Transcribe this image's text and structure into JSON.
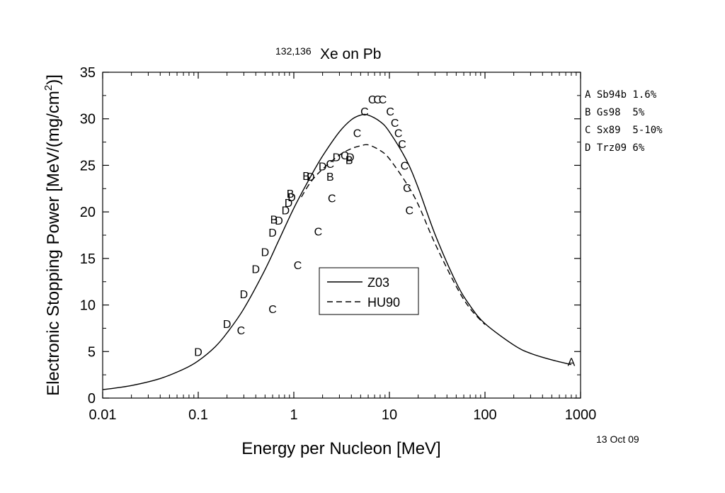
{
  "chart_data": {
    "type": "line",
    "title_superscript": "132,136",
    "title_main": "Xe on Pb",
    "xlabel": "Energy per Nucleon [MeV]",
    "ylabel_pre": "Electronic Stopping Power [MeV/(mg/cm",
    "ylabel_sup": "2",
    "ylabel_post": ")]",
    "x_scale": "log",
    "xlim": [
      0.01,
      1000
    ],
    "ylim": [
      0,
      35
    ],
    "x_ticks": [
      0.01,
      0.1,
      1,
      10,
      100,
      1000
    ],
    "x_tick_labels": [
      "0.01",
      "0.1",
      "1",
      "10",
      "100",
      "1000"
    ],
    "y_ticks": [
      0,
      5,
      10,
      15,
      20,
      25,
      30,
      35
    ],
    "y_tick_labels": [
      "0",
      "5",
      "10",
      "15",
      "20",
      "25",
      "30",
      "35"
    ],
    "grid": false,
    "legend_position": "center",
    "date": "13 Oct 09",
    "series": [
      {
        "name": "Z03",
        "style": "solid",
        "x": [
          0.01,
          0.02,
          0.04,
          0.07,
          0.1,
          0.15,
          0.2,
          0.3,
          0.5,
          0.7,
          1,
          1.5,
          2,
          3,
          4,
          5,
          6,
          8,
          10,
          15,
          20,
          30,
          50,
          70,
          100,
          200,
          300,
          500,
          800
        ],
        "y": [
          0.9,
          1.35,
          2.1,
          3.1,
          4.0,
          5.5,
          7.0,
          9.6,
          13.8,
          17.0,
          20.4,
          23.8,
          26.0,
          28.6,
          29.9,
          30.4,
          30.4,
          29.7,
          28.6,
          25.6,
          22.6,
          17.6,
          12.4,
          9.9,
          8.0,
          5.7,
          4.8,
          4.1,
          3.6
        ]
      },
      {
        "name": "HU90",
        "style": "dashed",
        "x": [
          1.2,
          1.5,
          2,
          3,
          4,
          5,
          6,
          8,
          10,
          15,
          20,
          30,
          50,
          70,
          100
        ],
        "y": [
          21.6,
          23.2,
          24.6,
          26.1,
          26.8,
          27.1,
          27.2,
          26.6,
          25.7,
          23.1,
          20.8,
          16.6,
          12.0,
          9.6,
          7.9
        ]
      }
    ],
    "data_points": [
      {
        "label": "A",
        "x": 800,
        "y": 3.9
      },
      {
        "label": "B",
        "x": 0.62,
        "y": 19.2
      },
      {
        "label": "B",
        "x": 0.92,
        "y": 22.0
      },
      {
        "label": "B",
        "x": 1.35,
        "y": 23.9
      },
      {
        "label": "B",
        "x": 2.4,
        "y": 23.8
      },
      {
        "label": "B",
        "x": 3.8,
        "y": 25.6
      },
      {
        "label": "C",
        "x": 0.28,
        "y": 7.3
      },
      {
        "label": "C",
        "x": 0.6,
        "y": 9.6
      },
      {
        "label": "C",
        "x": 1.1,
        "y": 14.3
      },
      {
        "label": "C",
        "x": 1.8,
        "y": 17.9
      },
      {
        "label": "C",
        "x": 2.5,
        "y": 21.5
      },
      {
        "label": "C",
        "x": 2.4,
        "y": 25.2
      },
      {
        "label": "C",
        "x": 3.4,
        "y": 26.1
      },
      {
        "label": "C",
        "x": 4.6,
        "y": 28.5
      },
      {
        "label": "C",
        "x": 5.5,
        "y": 30.8
      },
      {
        "label": "C",
        "x": 6.6,
        "y": 32.1
      },
      {
        "label": "C",
        "x": 7.5,
        "y": 32.1
      },
      {
        "label": "C",
        "x": 8.5,
        "y": 32.1
      },
      {
        "label": "C",
        "x": 10.2,
        "y": 30.8
      },
      {
        "label": "C",
        "x": 11.4,
        "y": 29.6
      },
      {
        "label": "C",
        "x": 12.4,
        "y": 28.5
      },
      {
        "label": "C",
        "x": 13.6,
        "y": 27.3
      },
      {
        "label": "C",
        "x": 14.4,
        "y": 25.0
      },
      {
        "label": "C",
        "x": 15.3,
        "y": 22.6
      },
      {
        "label": "C",
        "x": 16.2,
        "y": 20.2
      },
      {
        "label": "D",
        "x": 0.1,
        "y": 5.0
      },
      {
        "label": "D",
        "x": 0.2,
        "y": 8.0
      },
      {
        "label": "D",
        "x": 0.3,
        "y": 11.2
      },
      {
        "label": "D",
        "x": 0.4,
        "y": 13.9
      },
      {
        "label": "D",
        "x": 0.5,
        "y": 15.7
      },
      {
        "label": "D",
        "x": 0.6,
        "y": 17.8
      },
      {
        "label": "D",
        "x": 0.7,
        "y": 19.1
      },
      {
        "label": "D",
        "x": 0.82,
        "y": 20.2
      },
      {
        "label": "D",
        "x": 0.88,
        "y": 21.0
      },
      {
        "label": "D",
        "x": 0.95,
        "y": 21.6
      },
      {
        "label": "D",
        "x": 1.5,
        "y": 23.8
      },
      {
        "label": "D",
        "x": 2.0,
        "y": 24.9
      },
      {
        "label": "D",
        "x": 2.8,
        "y": 25.9
      },
      {
        "label": "D",
        "x": 3.9,
        "y": 25.9
      }
    ],
    "reference_key": [
      "A Sb94b 1.6%",
      "B Gs98  5%",
      "C Sx89  5-10%",
      "D Trz09 6%"
    ]
  }
}
